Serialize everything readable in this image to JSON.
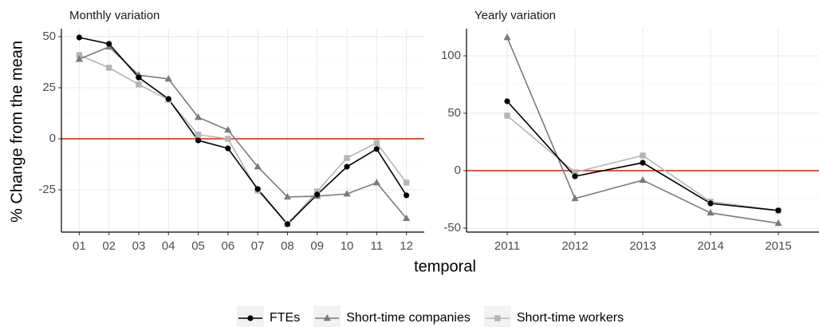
{
  "chart_data": [
    {
      "type": "line",
      "title": "Monthly variation",
      "categories": [
        "01",
        "02",
        "03",
        "04",
        "05",
        "06",
        "07",
        "08",
        "09",
        "10",
        "11",
        "12"
      ],
      "ylim": [
        -45.7,
        53.9
      ],
      "yticks": [
        -25,
        0,
        25,
        50
      ],
      "grid": true,
      "hline": {
        "value": 0,
        "color": "#e8391d"
      },
      "series": [
        {
          "name": "FTEs",
          "color": "#000000",
          "marker": "circle",
          "values": [
            49.6,
            46.5,
            30,
            19.5,
            -0.8,
            -4.7,
            -24.6,
            -41.8,
            -27.3,
            -13.7,
            -5,
            -27.7
          ]
        },
        {
          "name": "Short-time companies",
          "color": "#7a7a7a",
          "marker": "triangle",
          "values": [
            39,
            45,
            31.2,
            29.3,
            10.5,
            4.3,
            -13.7,
            -28.5,
            -28.1,
            -27,
            -21.5,
            -39
          ]
        },
        {
          "name": "Short-time workers",
          "color": "#b5b5b5",
          "marker": "square",
          "values": [
            41,
            34.8,
            26.6,
            19.1,
            2,
            0,
            -25.4,
            -41.8,
            -25.8,
            -9.4,
            -2,
            -21.5
          ]
        }
      ]
    },
    {
      "type": "line",
      "title": "Yearly variation",
      "categories": [
        "2011",
        "2012",
        "2013",
        "2014",
        "2015"
      ],
      "ylim": [
        -53.5,
        123.6
      ],
      "yticks": [
        -50,
        0,
        50,
        100
      ],
      "grid": true,
      "hline": {
        "value": 0,
        "color": "#e8391d"
      },
      "series": [
        {
          "name": "FTEs",
          "color": "#000000",
          "marker": "circle",
          "values": [
            60.4,
            -4.9,
            6.9,
            -28.5,
            -34.7
          ]
        },
        {
          "name": "Short-time companies",
          "color": "#7a7a7a",
          "marker": "triangle",
          "values": [
            116,
            -24.3,
            -8.3,
            -36.8,
            -45.8
          ]
        },
        {
          "name": "Short-time workers",
          "color": "#b5b5b5",
          "marker": "square",
          "values": [
            47.9,
            -1.4,
            13.2,
            -27,
            -34.7
          ]
        }
      ]
    }
  ],
  "x_label": "temporal",
  "y_label": "% Change from the mean"
}
